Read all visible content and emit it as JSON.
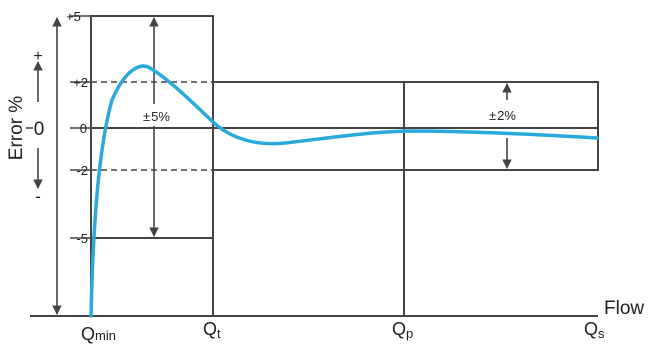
{
  "y_axis": {
    "title": "Error %",
    "plus_sign": "+",
    "zero": "0",
    "minus_sign": "-",
    "ticks": {
      "p5": "+5",
      "p2": "+2",
      "zero": "0",
      "m2": "-2",
      "m5": "-5"
    }
  },
  "x_axis": {
    "title": "Flow",
    "q_min": {
      "main": "Q",
      "sub": "min"
    },
    "q_t": {
      "main": "Q",
      "sub": "t"
    },
    "q_p": {
      "main": "Q",
      "sub": "p"
    },
    "q_s": {
      "main": "Q",
      "sub": "s"
    }
  },
  "zones": {
    "lower": {
      "sign": "±",
      "value": "5%"
    },
    "upper": {
      "sign": "±",
      "value": "2%"
    }
  },
  "colors": {
    "curve": "#2aa9dc",
    "lines": "#444444"
  }
}
